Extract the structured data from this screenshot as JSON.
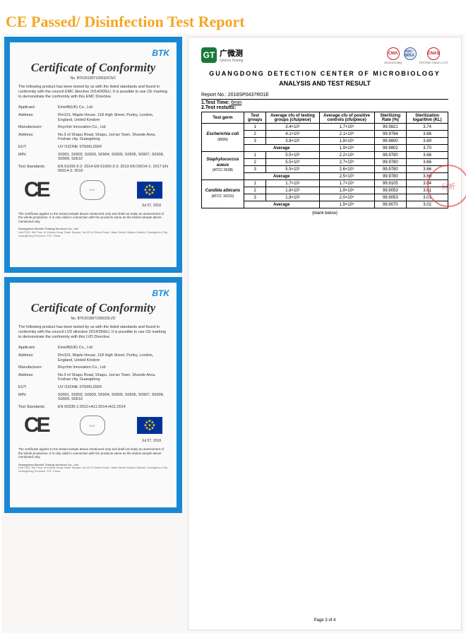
{
  "page_title": "CE Passed/ Disinfection Test Report",
  "cert_common": {
    "brand": "BTK",
    "heading": "Certificate of Conformity",
    "ce_mark": "CE",
    "applicant_label": "Applicant:",
    "address_label": "Address:",
    "manufacturer_label": "Manufacturer:",
    "mfr_addr_label": "Address:",
    "eut_label": "EUT:",
    "mn_label": "M/N:",
    "std_label": "Test Standards:",
    "applicant": "Emelift(UK) Co., Ltd",
    "address": "Rm101, Maple House, 118 High Street, Purley, London, England, United Kindom",
    "manufacturer": "Roychin Innovation Co., Ltd",
    "mfr_addr": "No.3 of Shapu Road, Shapu, Jun'an Town, Shunde Area, Foshan city, Guangdong",
    "eut": "UV OZONE STERILIZER",
    "mn": "S0901, S0902, S0903, S0904, S0905, S0906, S0907, S0908, S0909, S0910",
    "date": "Jul 07, 2018",
    "footer_org": "Guangzhou Bestek Testing Services Co., Ltd",
    "footer_addr": "Unit F&G, 5th Floor of Xinhua Hong Trade Square, No.23 of Shixin Road, Jiahe Street, Baiyun District, Guangzhou City, GuangDong Province, P.R. China"
  },
  "cert1": {
    "cert_no": "No. BTK201807100032/CNC",
    "intro": "The following product has been tested by us with the listed standards and found in conformity with the council EMC directive 2014/30/EU. It is possible to use CE marking to demonstrate the conformity with this EMC Directive.",
    "standards": "EN 61000-3-2: 2014    EN 61000-3-3: 2013\nEN 55014-1: 2017    EN 55014-2: 2015",
    "disclaimer": "The certificate applies to the tested sample above mentioned only and shall not imply an assessment of the whole production. It is only valid in connection with the products same as the tested sample above mentioned only."
  },
  "cert2": {
    "cert_no": "No. BTK201807100032/LVD",
    "intro": "The following product has been tested by us with the listed standards and found in conformity with the council LVD directive 2014/35/EU. It is possible to use CE marking to demonstrate the conformity with this LVD Directive.",
    "standards": "EN 60335-1:2012+A11:2014+A11:2014",
    "disclaimer": "The certificate applies to the tested sample above mentioned only and shall not imply an assessment of the whole production. It is only valid in connection with the products same as the tested sample above mentioned only."
  },
  "report": {
    "org_zh": "广微测",
    "org_en": "Gmicro Testing",
    "accred_cma": "CMA",
    "accred_cma_no": "2015191236Q",
    "accred_ilac": "ilac-MRA",
    "accred_cnas": "CNAS",
    "accred_cnas_no": "TESTING CNAS L1747",
    "center": "GUANGDONG DETECTION CENTER OF MICROBIOLOGY",
    "subtitle": "ANALYSIS AND TEST RESULT",
    "report_no_label": "Report No.:",
    "report_no": "2018SP0437R01E",
    "test_time_label": "1.Test Time:",
    "test_time": "6min",
    "test_results_label": "2.Test restults:",
    "headers": {
      "germ": "Test germ",
      "groups": "Test groups",
      "avg_test": "Average cfu of testing groups (cfu/piece)",
      "avg_pos": "Average cfu of positive controls (cfu/piece)",
      "rate": "Sterilizing Rate (%)",
      "log": "Sterilization logarithm (KL)"
    },
    "germs": [
      {
        "name": "Escherichia coli",
        "atcc": "(8099)",
        "rows": [
          {
            "g": "1",
            "t": "3.4×10¹",
            "p": "1.7×10⁵",
            "r": "99.9821",
            "k": "3.74"
          },
          {
            "g": "2",
            "t": "4.1×10¹",
            "p": "2.1×10⁵",
            "r": "99.9784",
            "k": "3.66"
          },
          {
            "g": "3",
            "t": "3.8×10¹",
            "p": "1.8×10⁵",
            "r": "99.9800",
            "k": "3.69"
          }
        ],
        "avg": {
          "g": "Average",
          "t": "",
          "p": "1.9×10⁵",
          "r": "99.9802",
          "k": "3.70"
        }
      },
      {
        "name": "Staphylococcus aueus",
        "atcc": "(ATCC 6538)",
        "rows": [
          {
            "g": "1",
            "t": "5.5×10¹",
            "p": "2.2×10⁵",
            "r": "99.9780",
            "k": "3.66"
          },
          {
            "g": "2",
            "t": "5.5×10¹",
            "p": "2.7×10⁵",
            "r": "99.9780",
            "k": "3.66"
          },
          {
            "g": "3",
            "t": "5.5×10¹",
            "p": "2.6×10⁵",
            "r": "99.9780",
            "k": "3.66"
          }
        ],
        "avg": {
          "g": "Average",
          "t": "",
          "p": "2.5×10⁵",
          "r": "99.9780",
          "k": "3.66"
        }
      },
      {
        "name": "Candida albicans",
        "atcc": "(ATCC 10231)",
        "rows": [
          {
            "g": "1",
            "t": "1.7×10¹",
            "p": "1.7×10⁴",
            "r": "99.9105",
            "k": "3.04"
          },
          {
            "g": "2",
            "t": "1.8×10¹",
            "p": "1.9×10⁴",
            "r": "99.9053",
            "k": "3.01"
          },
          {
            "g": "3",
            "t": "1.8×10¹",
            "p": "2.0×10⁴",
            "r": "99.9053",
            "k": "3.01"
          }
        ],
        "avg": {
          "g": "Average",
          "t": "",
          "p": "1.9×10⁴",
          "r": "99.9070",
          "k": "3.02"
        }
      }
    ],
    "blank": "(blank below)",
    "page_no": "Page 3 of 4"
  },
  "colors": {
    "title": "#f5a623",
    "border": "#1888d4",
    "seal": "#e53535",
    "gt": "#1a7a3a"
  }
}
